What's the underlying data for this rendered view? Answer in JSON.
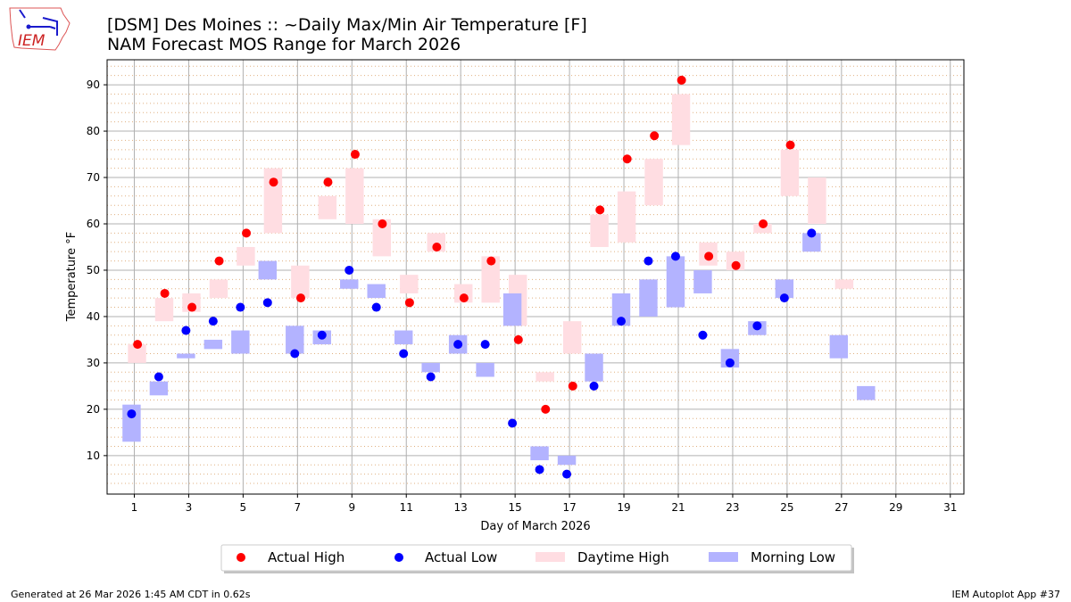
{
  "header": {
    "title_line1": "[DSM] Des Moines :: ~Daily Max/Min Air Temperature [F]",
    "title_line2": "NAM Forecast MOS Range for March 2026",
    "logo_text": "IEM"
  },
  "footer": {
    "generated": "Generated at 26 Mar 2026 1:45 AM CDT in 0.62s",
    "app": "IEM Autoplot App #37"
  },
  "chart_data": {
    "type": "scatter",
    "xlabel": "Day of March 2026",
    "ylabel": "Temperature °F",
    "xlim": [
      0,
      31.5
    ],
    "ylim": [
      1.7,
      95.4
    ],
    "xticks": [
      1,
      3,
      5,
      7,
      9,
      11,
      13,
      15,
      17,
      19,
      21,
      23,
      25,
      27,
      29,
      31
    ],
    "yticks": [
      10,
      20,
      30,
      40,
      50,
      60,
      70,
      80,
      90
    ],
    "grid": true,
    "minor_grid_step": 2,
    "legend_position": "bottom-center",
    "colors": {
      "actual_high": "#ff0000",
      "actual_low": "#0000ff",
      "daytime_high": "#ffdde2",
      "morning_low": "#b3b3ff",
      "minor_grid": "#e0b080"
    },
    "legend": [
      "Actual High",
      "Actual Low",
      "Daytime High",
      "Morning Low"
    ],
    "actual_high": {
      "days": [
        1,
        2,
        3,
        4,
        5,
        6,
        7,
        8,
        9,
        10,
        11,
        12,
        13,
        14,
        15,
        16,
        17,
        18,
        19,
        20,
        21,
        22,
        23,
        24,
        25
      ],
      "values": [
        34,
        45,
        42,
        52,
        58,
        69,
        44,
        69,
        75,
        60,
        43,
        55,
        44,
        52,
        35,
        20,
        25,
        63,
        74,
        79,
        91,
        53,
        51,
        60,
        77
      ]
    },
    "actual_low": {
      "days": [
        1,
        2,
        3,
        4,
        5,
        6,
        7,
        8,
        9,
        10,
        11,
        12,
        13,
        14,
        15,
        16,
        17,
        18,
        19,
        20,
        21,
        22,
        23,
        24,
        25,
        26
      ],
      "values": [
        19,
        27,
        37,
        39,
        42,
        43,
        32,
        36,
        50,
        42,
        32,
        27,
        34,
        34,
        17,
        7,
        6,
        25,
        39,
        52,
        53,
        36,
        30,
        38,
        44,
        58
      ]
    },
    "daytime_high_range": {
      "days": [
        1,
        2,
        3,
        4,
        5,
        6,
        7,
        8,
        9,
        10,
        11,
        12,
        13,
        14,
        15,
        16,
        17,
        18,
        19,
        20,
        21,
        22,
        23,
        24,
        25,
        26,
        27
      ],
      "min": [
        30,
        39,
        41,
        44,
        51,
        58,
        44,
        61,
        60,
        53,
        45,
        54,
        43,
        43,
        38,
        26,
        32,
        55,
        56,
        64,
        77,
        51,
        50,
        58,
        66,
        60,
        46
      ],
      "max": [
        34,
        44,
        45,
        48,
        55,
        72,
        51,
        66,
        72,
        61,
        49,
        58,
        47,
        53,
        49,
        28,
        39,
        62,
        67,
        74,
        88,
        56,
        54,
        60,
        76,
        70,
        48
      ]
    },
    "morning_low_range": {
      "days": [
        1,
        2,
        3,
        4,
        5,
        6,
        7,
        8,
        9,
        10,
        11,
        12,
        13,
        14,
        15,
        16,
        17,
        18,
        19,
        20,
        21,
        22,
        23,
        24,
        25,
        26,
        27,
        28
      ],
      "min": [
        13,
        23,
        31,
        33,
        32,
        48,
        32,
        34,
        46,
        44,
        34,
        28,
        32,
        27,
        38,
        9,
        8,
        26,
        38,
        40,
        42,
        45,
        29,
        36,
        44,
        54,
        31,
        22
      ],
      "max": [
        21,
        26,
        32,
        35,
        37,
        52,
        38,
        37,
        48,
        47,
        37,
        30,
        36,
        30,
        45,
        12,
        10,
        32,
        45,
        48,
        53,
        50,
        33,
        39,
        48,
        58,
        36,
        25
      ]
    }
  }
}
